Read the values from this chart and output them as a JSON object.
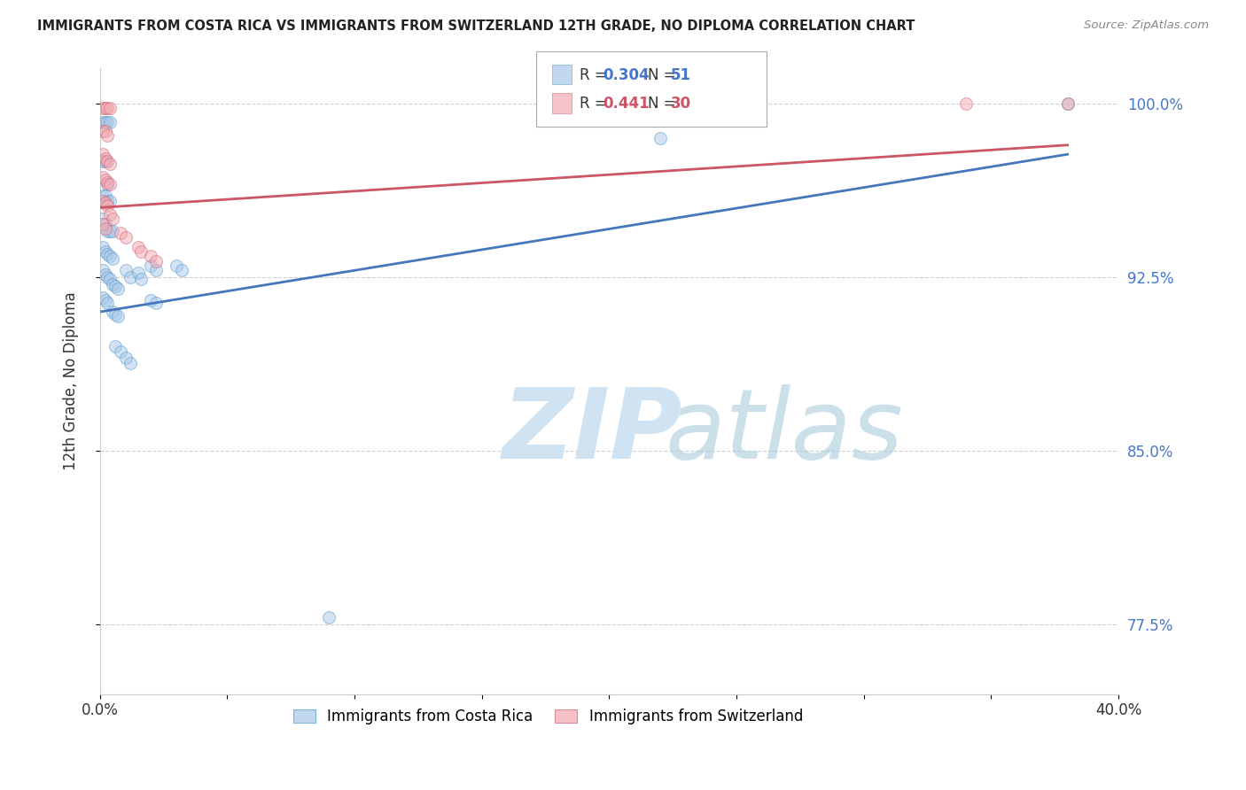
{
  "title": "IMMIGRANTS FROM COSTA RICA VS IMMIGRANTS FROM SWITZERLAND 12TH GRADE, NO DIPLOMA CORRELATION CHART",
  "source": "Source: ZipAtlas.com",
  "ylabel": "12th Grade, No Diploma",
  "legend_blue_label": "Immigrants from Costa Rica",
  "legend_pink_label": "Immigrants from Switzerland",
  "blue_color": "#a8c8e8",
  "blue_edge_color": "#5599cc",
  "blue_line_color": "#4477bb",
  "pink_color": "#f4a8b0",
  "pink_edge_color": "#cc6677",
  "pink_line_color": "#cc5566",
  "blue_scatter": [
    [
      0.001,
      0.992
    ],
    [
      0.002,
      0.992
    ],
    [
      0.003,
      0.992
    ],
    [
      0.004,
      0.992
    ],
    [
      0.001,
      0.975
    ],
    [
      0.002,
      0.975
    ],
    [
      0.003,
      0.965
    ],
    [
      0.001,
      0.96
    ],
    [
      0.002,
      0.96
    ],
    [
      0.003,
      0.958
    ],
    [
      0.004,
      0.958
    ],
    [
      0.001,
      0.95
    ],
    [
      0.002,
      0.948
    ],
    [
      0.003,
      0.945
    ],
    [
      0.004,
      0.945
    ],
    [
      0.005,
      0.945
    ],
    [
      0.001,
      0.938
    ],
    [
      0.002,
      0.936
    ],
    [
      0.003,
      0.935
    ],
    [
      0.004,
      0.934
    ],
    [
      0.005,
      0.933
    ],
    [
      0.001,
      0.928
    ],
    [
      0.002,
      0.926
    ],
    [
      0.003,
      0.925
    ],
    [
      0.004,
      0.924
    ],
    [
      0.005,
      0.922
    ],
    [
      0.006,
      0.921
    ],
    [
      0.007,
      0.92
    ],
    [
      0.001,
      0.916
    ],
    [
      0.002,
      0.915
    ],
    [
      0.003,
      0.914
    ],
    [
      0.005,
      0.91
    ],
    [
      0.006,
      0.909
    ],
    [
      0.007,
      0.908
    ],
    [
      0.01,
      0.928
    ],
    [
      0.012,
      0.925
    ],
    [
      0.015,
      0.927
    ],
    [
      0.016,
      0.924
    ],
    [
      0.02,
      0.93
    ],
    [
      0.022,
      0.928
    ],
    [
      0.03,
      0.93
    ],
    [
      0.032,
      0.928
    ],
    [
      0.02,
      0.915
    ],
    [
      0.022,
      0.914
    ],
    [
      0.006,
      0.895
    ],
    [
      0.008,
      0.893
    ],
    [
      0.01,
      0.89
    ],
    [
      0.012,
      0.888
    ],
    [
      0.09,
      0.778
    ],
    [
      0.22,
      0.985
    ],
    [
      0.38,
      1.0
    ]
  ],
  "pink_scatter": [
    [
      0.001,
      0.998
    ],
    [
      0.002,
      0.998
    ],
    [
      0.003,
      0.998
    ],
    [
      0.004,
      0.998
    ],
    [
      0.001,
      0.988
    ],
    [
      0.002,
      0.988
    ],
    [
      0.003,
      0.986
    ],
    [
      0.001,
      0.978
    ],
    [
      0.002,
      0.976
    ],
    [
      0.003,
      0.975
    ],
    [
      0.004,
      0.974
    ],
    [
      0.001,
      0.968
    ],
    [
      0.002,
      0.967
    ],
    [
      0.003,
      0.966
    ],
    [
      0.004,
      0.965
    ],
    [
      0.001,
      0.958
    ],
    [
      0.002,
      0.957
    ],
    [
      0.003,
      0.956
    ],
    [
      0.004,
      0.952
    ],
    [
      0.005,
      0.95
    ],
    [
      0.001,
      0.948
    ],
    [
      0.002,
      0.946
    ],
    [
      0.008,
      0.944
    ],
    [
      0.01,
      0.942
    ],
    [
      0.015,
      0.938
    ],
    [
      0.016,
      0.936
    ],
    [
      0.02,
      0.934
    ],
    [
      0.022,
      0.932
    ],
    [
      0.34,
      1.0
    ],
    [
      0.38,
      1.0
    ]
  ],
  "xlim": [
    0.0,
    0.4
  ],
  "ylim": [
    0.745,
    1.015
  ],
  "ytick_values": [
    0.775,
    0.85,
    0.925,
    1.0
  ],
  "ytick_labels": [
    "77.5%",
    "85.0%",
    "92.5%",
    "100.0%"
  ],
  "xtick_values": [
    0.0,
    0.05,
    0.1,
    0.15,
    0.2,
    0.25,
    0.3,
    0.35,
    0.4
  ],
  "xtick_labels": [
    "0.0%",
    "",
    "",
    "",
    "",
    "",
    "",
    "",
    "40.0%"
  ],
  "grid_color": "#cccccc",
  "background_color": "#ffffff",
  "marker_size": 100,
  "marker_alpha": 0.5
}
